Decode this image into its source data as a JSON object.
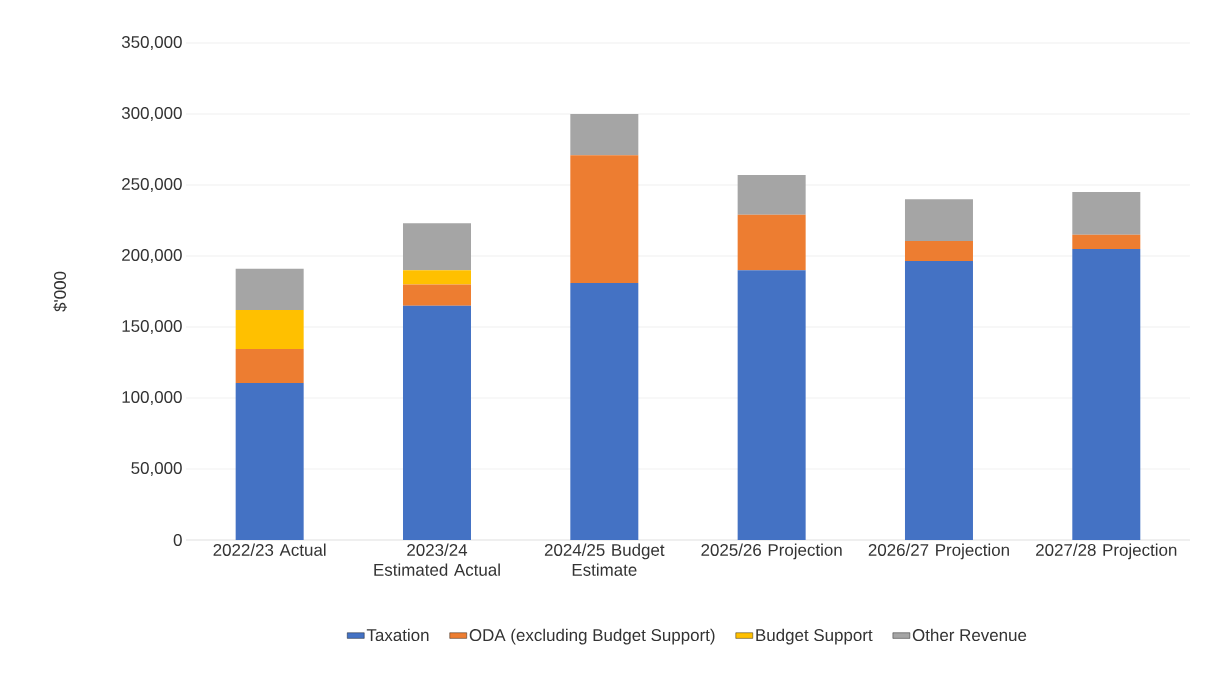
{
  "chart_data": {
    "type": "bar",
    "stacked": true,
    "ylabel": "$'000",
    "categories": [
      "2022/23 Actual",
      "2023/24 Estimated Actual",
      "2024/25 Budget Estimate",
      "2025/26 Projection",
      "2026/27 Projection",
      "2027/28 Projection"
    ],
    "series": [
      {
        "name": "Taxation",
        "color": "#4472c4",
        "values": [
          110500,
          165000,
          181000,
          190000,
          196500,
          205000
        ]
      },
      {
        "name": "ODA (excluding Budget Support)",
        "color": "#ed7d31",
        "values": [
          24000,
          15000,
          90000,
          39000,
          14000,
          10000
        ]
      },
      {
        "name": "Budget Support",
        "color": "#ffc000",
        "values": [
          27500,
          10000,
          0,
          0,
          0,
          0
        ]
      },
      {
        "name": "Other Revenue",
        "color": "#a5a5a5",
        "values": [
          29000,
          33000,
          29000,
          28000,
          29500,
          30000
        ]
      }
    ],
    "ylim": [
      0,
      350000
    ],
    "yticks": [
      0,
      {
        "value": 50000,
        "label": "50,000"
      },
      {
        "value": 100000,
        "label": "100,000"
      },
      {
        "value": 150000,
        "label": "150,000"
      },
      {
        "value": 200000,
        "label": "200,000"
      },
      {
        "value": 250000,
        "label": "250,000"
      },
      {
        "value": 300000,
        "label": "300,000"
      },
      {
        "value": 350000,
        "label": "350,000"
      }
    ],
    "grid": "y",
    "legend": "bottom"
  }
}
